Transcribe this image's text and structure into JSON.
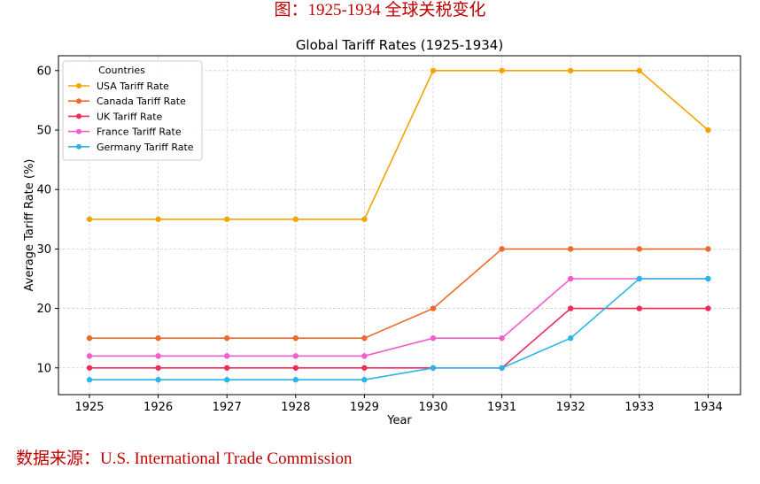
{
  "caption_top": "图：1925-1934 全球关税变化",
  "caption_bottom": "数据来源：U.S. International Trade Commission",
  "chart_data": {
    "type": "line",
    "title": "Global Tariff Rates (1925-1934)",
    "xlabel": "Year",
    "ylabel": "Average Tariff Rate (%)",
    "x": [
      "1925",
      "1926",
      "1927",
      "1928",
      "1929",
      "1930",
      "1931",
      "1932",
      "1933",
      "1934"
    ],
    "ylim": [
      5.5,
      62.5
    ],
    "yticks": [
      10,
      20,
      30,
      40,
      50,
      60
    ],
    "grid": true,
    "legend": {
      "title": "Countries",
      "placement": "top-left"
    },
    "series": [
      {
        "name": "USA Tariff Rate",
        "color": "#f5a300",
        "values": [
          35,
          35,
          35,
          35,
          35,
          60,
          60,
          60,
          60,
          50
        ]
      },
      {
        "name": "Canada Tariff Rate",
        "color": "#ee6a2a",
        "values": [
          15,
          15,
          15,
          15,
          15,
          20,
          30,
          30,
          30,
          30
        ]
      },
      {
        "name": "UK Tariff Rate",
        "color": "#ea2e5a",
        "values": [
          10,
          10,
          10,
          10,
          10,
          10,
          10,
          20,
          20,
          20
        ]
      },
      {
        "name": "France Tariff Rate",
        "color": "#f25ccb",
        "values": [
          12,
          12,
          12,
          12,
          12,
          15,
          15,
          25,
          25,
          25
        ]
      },
      {
        "name": "Germany Tariff Rate",
        "color": "#2bb5ea",
        "values": [
          8,
          8,
          8,
          8,
          8,
          10,
          10,
          15,
          25,
          25
        ]
      }
    ]
  }
}
